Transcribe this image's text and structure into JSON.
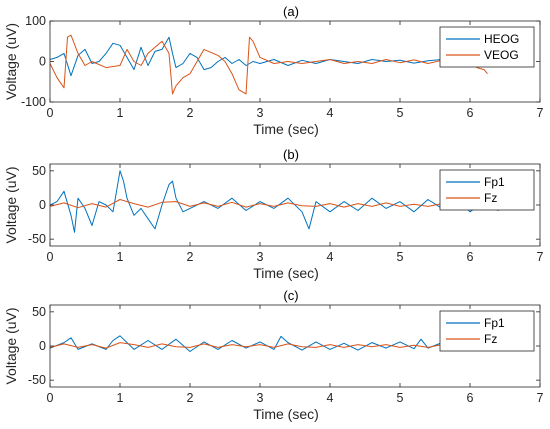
{
  "colors": {
    "blue": "#0072BD",
    "orange": "#D95319",
    "axis": "#262626"
  },
  "chart_data": [
    {
      "type": "line",
      "title": "(a)",
      "xlabel": "Time (sec)",
      "ylabel": "Voltage (uV)",
      "xlim": [
        0,
        7
      ],
      "ylim": [
        -100,
        100
      ],
      "xticks": [
        0,
        1,
        2,
        3,
        4,
        5,
        6,
        7
      ],
      "yticks": [
        -100,
        0,
        100
      ],
      "grid": false,
      "legend_position": "top-right",
      "series": [
        {
          "name": "HEOG",
          "color": "#0072BD",
          "x": [
            0,
            0.1,
            0.2,
            0.3,
            0.4,
            0.5,
            0.6,
            0.7,
            0.8,
            0.9,
            1.0,
            1.1,
            1.2,
            1.3,
            1.4,
            1.5,
            1.6,
            1.7,
            1.75,
            1.8,
            1.9,
            2.0,
            2.1,
            2.2,
            2.3,
            2.4,
            2.5,
            2.6,
            2.7,
            2.8,
            2.9,
            3.0,
            3.2,
            3.4,
            3.6,
            3.8,
            4.0,
            4.2,
            4.4,
            4.6,
            4.8,
            5.0,
            5.2,
            5.4,
            5.6,
            5.8,
            6.0,
            6.2,
            6.4,
            6.5
          ],
          "y": [
            5,
            10,
            20,
            -35,
            15,
            30,
            -5,
            0,
            20,
            45,
            40,
            10,
            -20,
            35,
            -10,
            25,
            30,
            60,
            20,
            -15,
            -5,
            20,
            10,
            -20,
            -15,
            0,
            10,
            -5,
            5,
            -10,
            0,
            -5,
            5,
            -10,
            3,
            -5,
            5,
            0,
            -5,
            5,
            0,
            3,
            -4,
            2,
            5,
            -3,
            4,
            -8,
            3,
            -2
          ]
        },
        {
          "name": "VEOG",
          "color": "#D95319",
          "x": [
            0,
            0.1,
            0.2,
            0.25,
            0.3,
            0.4,
            0.5,
            0.6,
            0.8,
            1.0,
            1.1,
            1.2,
            1.3,
            1.4,
            1.5,
            1.6,
            1.7,
            1.75,
            1.8,
            1.9,
            2.0,
            2.2,
            2.4,
            2.5,
            2.6,
            2.7,
            2.8,
            2.85,
            2.9,
            3.0,
            3.2,
            3.4,
            3.6,
            3.8,
            4.0,
            4.2,
            4.4,
            4.6,
            4.8,
            5.0,
            5.2,
            5.4,
            5.6,
            5.8,
            6.0,
            6.1,
            6.2,
            6.25
          ],
          "y": [
            -5,
            -40,
            -65,
            60,
            65,
            20,
            -10,
            0,
            -15,
            -10,
            30,
            0,
            -10,
            20,
            35,
            50,
            20,
            -80,
            -60,
            -40,
            -30,
            30,
            15,
            0,
            -30,
            -70,
            -80,
            60,
            50,
            10,
            -5,
            0,
            -5,
            0,
            5,
            -5,
            0,
            -5,
            5,
            -3,
            4,
            -5,
            3,
            0,
            -2,
            -15,
            -20,
            -30
          ]
        }
      ]
    },
    {
      "type": "line",
      "title": "(b)",
      "xlabel": "Time (sec)",
      "ylabel": "Voltage (uV)",
      "xlim": [
        0,
        7
      ],
      "ylim": [
        -60,
        60
      ],
      "xticks": [
        0,
        1,
        2,
        3,
        4,
        5,
        6,
        7
      ],
      "yticks": [
        -50,
        0,
        50
      ],
      "grid": false,
      "legend_position": "top-right",
      "series": [
        {
          "name": "Fp1",
          "color": "#0072BD",
          "x": [
            0,
            0.1,
            0.2,
            0.3,
            0.35,
            0.4,
            0.5,
            0.6,
            0.7,
            0.8,
            0.9,
            1.0,
            1.05,
            1.1,
            1.2,
            1.3,
            1.4,
            1.5,
            1.6,
            1.7,
            1.75,
            1.8,
            1.9,
            2.0,
            2.2,
            2.4,
            2.6,
            2.8,
            3.0,
            3.2,
            3.4,
            3.6,
            3.7,
            3.8,
            4.0,
            4.2,
            4.4,
            4.6,
            4.8,
            5.0,
            5.2,
            5.4,
            5.6,
            5.8,
            6.0,
            6.2,
            6.4,
            6.5
          ],
          "y": [
            0,
            5,
            20,
            -15,
            -40,
            10,
            -5,
            -30,
            5,
            0,
            -10,
            50,
            35,
            10,
            -15,
            -5,
            -20,
            -35,
            0,
            30,
            35,
            10,
            -10,
            -5,
            5,
            -5,
            10,
            -8,
            5,
            -5,
            10,
            -10,
            -35,
            5,
            -10,
            5,
            -8,
            10,
            -5,
            5,
            -10,
            8,
            -5,
            10,
            -10,
            5,
            -8,
            2
          ]
        },
        {
          "name": "Fz",
          "color": "#D95319",
          "x": [
            0,
            0.2,
            0.4,
            0.6,
            0.8,
            1.0,
            1.2,
            1.4,
            1.6,
            1.8,
            2.0,
            2.2,
            2.4,
            2.6,
            2.8,
            3.0,
            3.2,
            3.4,
            3.6,
            3.8,
            4.0,
            4.2,
            4.4,
            4.6,
            4.8,
            5.0,
            5.2,
            5.4,
            5.6,
            5.8,
            6.0,
            6.2,
            6.4,
            6.5
          ],
          "y": [
            -2,
            3,
            -4,
            2,
            -3,
            8,
            2,
            -3,
            4,
            5,
            -2,
            3,
            -2,
            4,
            -3,
            2,
            -2,
            3,
            -1,
            -2,
            2,
            -3,
            2,
            -2,
            3,
            -2,
            1,
            -2,
            2,
            -1,
            2,
            -1,
            1,
            -1
          ]
        }
      ]
    },
    {
      "type": "line",
      "title": "(c)",
      "xlabel": "Time (sec)",
      "ylabel": "Voltage (uV)",
      "xlim": [
        0,
        7
      ],
      "ylim": [
        -60,
        60
      ],
      "xticks": [
        0,
        1,
        2,
        3,
        4,
        5,
        6,
        7
      ],
      "yticks": [
        -50,
        0,
        50
      ],
      "grid": false,
      "legend_position": "top-right",
      "series": [
        {
          "name": "Fp1",
          "color": "#0072BD",
          "x": [
            0,
            0.2,
            0.3,
            0.4,
            0.6,
            0.8,
            0.9,
            1.0,
            1.1,
            1.2,
            1.4,
            1.6,
            1.8,
            2.0,
            2.2,
            2.4,
            2.6,
            2.8,
            3.0,
            3.2,
            3.3,
            3.4,
            3.6,
            3.8,
            4.0,
            4.2,
            4.4,
            4.6,
            4.8,
            5.0,
            5.2,
            5.3,
            5.4,
            5.6,
            5.8,
            6.0,
            6.2,
            6.4,
            6.5
          ],
          "y": [
            -3,
            5,
            12,
            -5,
            3,
            -5,
            8,
            15,
            5,
            -5,
            8,
            -5,
            10,
            -8,
            6,
            -5,
            8,
            -3,
            6,
            -5,
            14,
            5,
            -6,
            6,
            -5,
            4,
            -6,
            5,
            -3,
            6,
            -4,
            10,
            -3,
            5,
            -4,
            4,
            -3,
            2,
            -1
          ]
        },
        {
          "name": "Fz",
          "color": "#D95319",
          "x": [
            0,
            0.2,
            0.4,
            0.6,
            0.8,
            1.0,
            1.2,
            1.4,
            1.6,
            1.8,
            2.0,
            2.2,
            2.4,
            2.6,
            2.8,
            3.0,
            3.2,
            3.4,
            3.6,
            3.8,
            4.0,
            4.2,
            4.4,
            4.6,
            4.8,
            5.0,
            5.2,
            5.4,
            5.6,
            5.8,
            6.0,
            6.2,
            6.4,
            6.5
          ],
          "y": [
            -2,
            3,
            -2,
            2,
            -3,
            5,
            2,
            -2,
            3,
            -1,
            -2,
            3,
            -2,
            2,
            -1,
            2,
            -2,
            3,
            -1,
            -2,
            2,
            -2,
            2,
            -1,
            2,
            -2,
            1,
            -2,
            2,
            -1,
            1,
            -1,
            1,
            0
          ]
        }
      ]
    }
  ]
}
